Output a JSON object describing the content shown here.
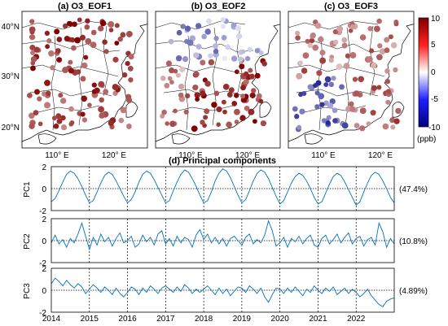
{
  "colors": {
    "line": "#0072bd",
    "colormap_low": "#00007f",
    "colormap_mid": "#ffffff",
    "colormap_high": "#7f0000"
  },
  "maps": [
    {
      "title": "(a) O3_EOF1",
      "xticks": [
        "110° E",
        "120° E"
      ],
      "yticks": [
        "40°N",
        "30°N",
        "20°N"
      ]
    },
    {
      "title": "(b) O3_EOF2",
      "xticks": [
        "110° E",
        "120° E"
      ],
      "yticks": []
    },
    {
      "title": "(c) O3_EOF3",
      "xticks": [
        "110° E",
        "120° E"
      ],
      "yticks": []
    }
  ],
  "colorbar": {
    "ticks": [
      "10",
      "5",
      "0",
      "-5",
      "-10"
    ],
    "unit": "(ppb)",
    "range": [
      -10,
      10
    ]
  },
  "pc_section_title": "(d) Principal components",
  "year_labels": [
    "2014",
    "2015",
    "2016",
    "2017",
    "2018",
    "2019",
    "2020",
    "2021",
    "2022"
  ],
  "chart_data": [
    {
      "type": "line",
      "title": "(d) Principal components",
      "xlabel": "",
      "ylabel": "PC1",
      "x_range": [
        2014,
        2023
      ],
      "ylim": [
        -2,
        2
      ],
      "yticks": [
        "2",
        "0",
        "-2"
      ],
      "annotation": "(47.4%)",
      "series": [
        {
          "x": [
            2014.0,
            2014.1,
            2014.2,
            2014.3,
            2014.4,
            2014.5,
            2014.6,
            2014.7,
            2014.8,
            2014.9,
            2015.0,
            2015.1,
            2015.2,
            2015.3,
            2015.4,
            2015.5,
            2015.6,
            2015.7,
            2015.8,
            2015.9,
            2016.0,
            2016.1,
            2016.2,
            2016.3,
            2016.4,
            2016.5,
            2016.6,
            2016.7,
            2016.8,
            2016.9,
            2017.0,
            2017.1,
            2017.2,
            2017.3,
            2017.4,
            2017.5,
            2017.6,
            2017.7,
            2017.8,
            2017.9,
            2018.0,
            2018.1,
            2018.2,
            2018.3,
            2018.4,
            2018.5,
            2018.6,
            2018.7,
            2018.8,
            2018.9,
            2019.0,
            2019.1,
            2019.2,
            2019.3,
            2019.4,
            2019.5,
            2019.6,
            2019.7,
            2019.8,
            2019.9,
            2020.0,
            2020.1,
            2020.2,
            2020.3,
            2020.4,
            2020.5,
            2020.6,
            2020.7,
            2020.8,
            2020.9,
            2021.0,
            2021.1,
            2021.2,
            2021.3,
            2021.4,
            2021.5,
            2021.6,
            2021.7,
            2021.8,
            2021.9,
            2022.0,
            2022.1,
            2022.2,
            2022.3,
            2022.4,
            2022.5,
            2022.6,
            2022.7,
            2022.8,
            2022.9,
            2023.0
          ],
          "y": [
            -1.2,
            -0.9,
            -0.2,
            0.6,
            1.3,
            1.6,
            1.4,
            0.9,
            0.2,
            -0.6,
            -1.3,
            -1.1,
            -0.3,
            0.5,
            1.2,
            1.5,
            1.3,
            0.7,
            0.0,
            -0.7,
            -1.3,
            -1.0,
            -0.3,
            0.6,
            1.3,
            1.6,
            1.4,
            0.8,
            0.1,
            -0.6,
            -1.3,
            -1.1,
            -0.2,
            0.6,
            1.3,
            1.7,
            1.5,
            0.9,
            0.2,
            -0.6,
            -1.3,
            -1.1,
            -0.3,
            0.7,
            1.4,
            1.8,
            1.6,
            1.0,
            0.2,
            -0.6,
            -1.3,
            -1.0,
            -0.2,
            0.7,
            1.4,
            1.7,
            1.5,
            0.9,
            0.1,
            -0.7,
            -1.4,
            -1.1,
            -0.3,
            0.5,
            1.1,
            1.4,
            1.2,
            0.7,
            0.0,
            -0.8,
            -1.4,
            -1.2,
            -0.4,
            0.4,
            1.1,
            1.4,
            1.2,
            0.6,
            -0.1,
            -0.8,
            -1.5,
            -1.2,
            -0.3,
            0.5,
            1.2,
            1.5,
            1.3,
            0.7,
            0.0,
            -0.8,
            -1.3
          ]
        }
      ]
    },
    {
      "type": "line",
      "ylabel": "PC2",
      "x_range": [
        2014,
        2023
      ],
      "ylim": [
        -2,
        2
      ],
      "yticks": [
        "2",
        "0",
        "-2"
      ],
      "annotation": "(10.8%)",
      "series": [
        {
          "x": [
            2014.0,
            2014.1,
            2014.2,
            2014.3,
            2014.4,
            2014.5,
            2014.6,
            2014.7,
            2014.8,
            2014.9,
            2015.0,
            2015.1,
            2015.2,
            2015.3,
            2015.4,
            2015.5,
            2015.6,
            2015.7,
            2015.8,
            2015.9,
            2016.0,
            2016.1,
            2016.2,
            2016.3,
            2016.4,
            2016.5,
            2016.6,
            2016.7,
            2016.8,
            2016.9,
            2017.0,
            2017.1,
            2017.2,
            2017.3,
            2017.4,
            2017.5,
            2017.6,
            2017.7,
            2017.8,
            2017.9,
            2018.0,
            2018.1,
            2018.2,
            2018.3,
            2018.4,
            2018.5,
            2018.6,
            2018.7,
            2018.8,
            2018.9,
            2019.0,
            2019.1,
            2019.2,
            2019.3,
            2019.4,
            2019.5,
            2019.6,
            2019.7,
            2019.8,
            2019.9,
            2020.0,
            2020.1,
            2020.2,
            2020.3,
            2020.4,
            2020.5,
            2020.6,
            2020.7,
            2020.8,
            2020.9,
            2021.0,
            2021.1,
            2021.2,
            2021.3,
            2021.4,
            2021.5,
            2021.6,
            2021.7,
            2021.8,
            2021.9,
            2022.0,
            2022.1,
            2022.2,
            2022.3,
            2022.4,
            2022.5,
            2022.6,
            2022.7,
            2022.8,
            2022.9,
            2023.0
          ],
          "y": [
            -0.2,
            0.5,
            -0.3,
            0.1,
            -0.6,
            0.2,
            -0.2,
            0.6,
            1.6,
            0.4,
            -0.8,
            0.3,
            -0.4,
            0.6,
            -0.1,
            0.3,
            -0.5,
            0.2,
            0.7,
            -0.2,
            0.0,
            0.4,
            -0.6,
            -0.3,
            0.5,
            -0.1,
            0.3,
            -0.4,
            0.6,
            0.9,
            -0.3,
            0.2,
            -0.5,
            0.4,
            -0.2,
            0.3,
            0.1,
            -0.6,
            0.5,
            1.0,
            0.1,
            0.6,
            -0.2,
            0.3,
            -0.3,
            0.2,
            -0.5,
            0.2,
            0.4,
            0.0,
            -0.4,
            0.3,
            0.6,
            -0.3,
            0.1,
            -0.2,
            0.5,
            1.8,
            0.9,
            -0.5,
            -0.2,
            0.3,
            -0.6,
            0.2,
            -0.1,
            0.4,
            -0.3,
            0.2,
            0.5,
            -0.4,
            -0.6,
            0.2,
            0.5,
            -0.3,
            0.1,
            0.6,
            -0.2,
            0.3,
            0.7,
            -0.3,
            0.2,
            0.4,
            -0.5,
            0.1,
            0.3,
            -0.4,
            1.6,
            0.8,
            -0.6,
            0.2,
            -0.3
          ]
        }
      ]
    },
    {
      "type": "line",
      "ylabel": "PC3",
      "x_range": [
        2014,
        2023
      ],
      "ylim": [
        -2,
        2
      ],
      "yticks": [
        "2",
        "0",
        "-2"
      ],
      "annotation": "(4.89%)",
      "series": [
        {
          "x": [
            2014.0,
            2014.1,
            2014.2,
            2014.3,
            2014.4,
            2014.5,
            2014.6,
            2014.7,
            2014.8,
            2014.9,
            2015.0,
            2015.1,
            2015.2,
            2015.3,
            2015.4,
            2015.5,
            2015.6,
            2015.7,
            2015.8,
            2015.9,
            2016.0,
            2016.1,
            2016.2,
            2016.3,
            2016.4,
            2016.5,
            2016.6,
            2016.7,
            2016.8,
            2016.9,
            2017.0,
            2017.1,
            2017.2,
            2017.3,
            2017.4,
            2017.5,
            2017.6,
            2017.7,
            2017.8,
            2017.9,
            2018.0,
            2018.1,
            2018.2,
            2018.3,
            2018.4,
            2018.5,
            2018.6,
            2018.7,
            2018.8,
            2018.9,
            2019.0,
            2019.1,
            2019.2,
            2019.3,
            2019.4,
            2019.5,
            2019.6,
            2019.7,
            2019.8,
            2019.9,
            2020.0,
            2020.1,
            2020.2,
            2020.3,
            2020.4,
            2020.5,
            2020.6,
            2020.7,
            2020.8,
            2020.9,
            2021.0,
            2021.1,
            2021.2,
            2021.3,
            2021.4,
            2021.5,
            2021.6,
            2021.7,
            2021.8,
            2021.9,
            2022.0,
            2022.1,
            2022.2,
            2022.3,
            2022.4,
            2022.5,
            2022.6,
            2022.7,
            2022.8,
            2022.9,
            2023.0
          ],
          "y": [
            0.6,
            1.1,
            0.8,
            0.4,
            0.9,
            0.5,
            0.2,
            0.6,
            0.3,
            -0.3,
            0.1,
            0.5,
            0.2,
            -0.2,
            0.3,
            0.0,
            -0.4,
            0.2,
            -0.3,
            -0.6,
            -0.2,
            0.3,
            0.1,
            -0.4,
            0.2,
            -0.2,
            0.4,
            0.1,
            -0.3,
            0.2,
            0.4,
            0.1,
            -0.2,
            0.3,
            -0.1,
            0.5,
            0.2,
            -0.3,
            0.1,
            -0.2,
            0.1,
            0.4,
            0.0,
            -0.4,
            0.2,
            -0.3,
            0.1,
            -0.5,
            -0.1,
            0.3,
            0.2,
            -0.2,
            0.4,
            0.1,
            -0.3,
            0.2,
            -0.6,
            -1.1,
            -0.4,
            0.2,
            0.1,
            -0.3,
            0.2,
            -0.2,
            0.3,
            -0.1,
            -0.5,
            0.1,
            -0.2,
            0.4,
            0.0,
            -0.3,
            0.2,
            -0.1,
            0.3,
            -0.4,
            -0.1,
            0.2,
            -0.3,
            0.1,
            -0.2,
            -0.6,
            -0.3,
            0.1,
            -0.5,
            -0.9,
            -1.3,
            -1.5,
            -1.0,
            -0.8,
            -0.7
          ]
        }
      ]
    }
  ]
}
